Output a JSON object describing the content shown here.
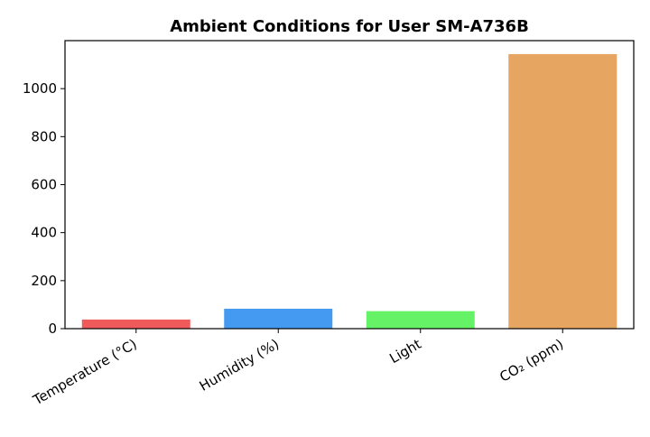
{
  "chart_data": {
    "type": "bar",
    "title": "Ambient Conditions for User SM-A736B",
    "xlabel": "",
    "ylabel": "",
    "categories": [
      "Temperature (°C)",
      "Humidity (%)",
      "Light",
      "CO₂ (ppm)"
    ],
    "values": [
      38,
      83,
      73,
      1144
    ],
    "colors": [
      "#f05a5a",
      "#4499f0",
      "#66f266",
      "#e6a560"
    ],
    "ylim": [
      0,
      1200
    ],
    "yticks": [
      0,
      200,
      400,
      600,
      800,
      1000
    ],
    "ytick_labels": [
      "0",
      "200",
      "400",
      "600",
      "800",
      "1000"
    ],
    "grid": false,
    "legend": "none"
  }
}
